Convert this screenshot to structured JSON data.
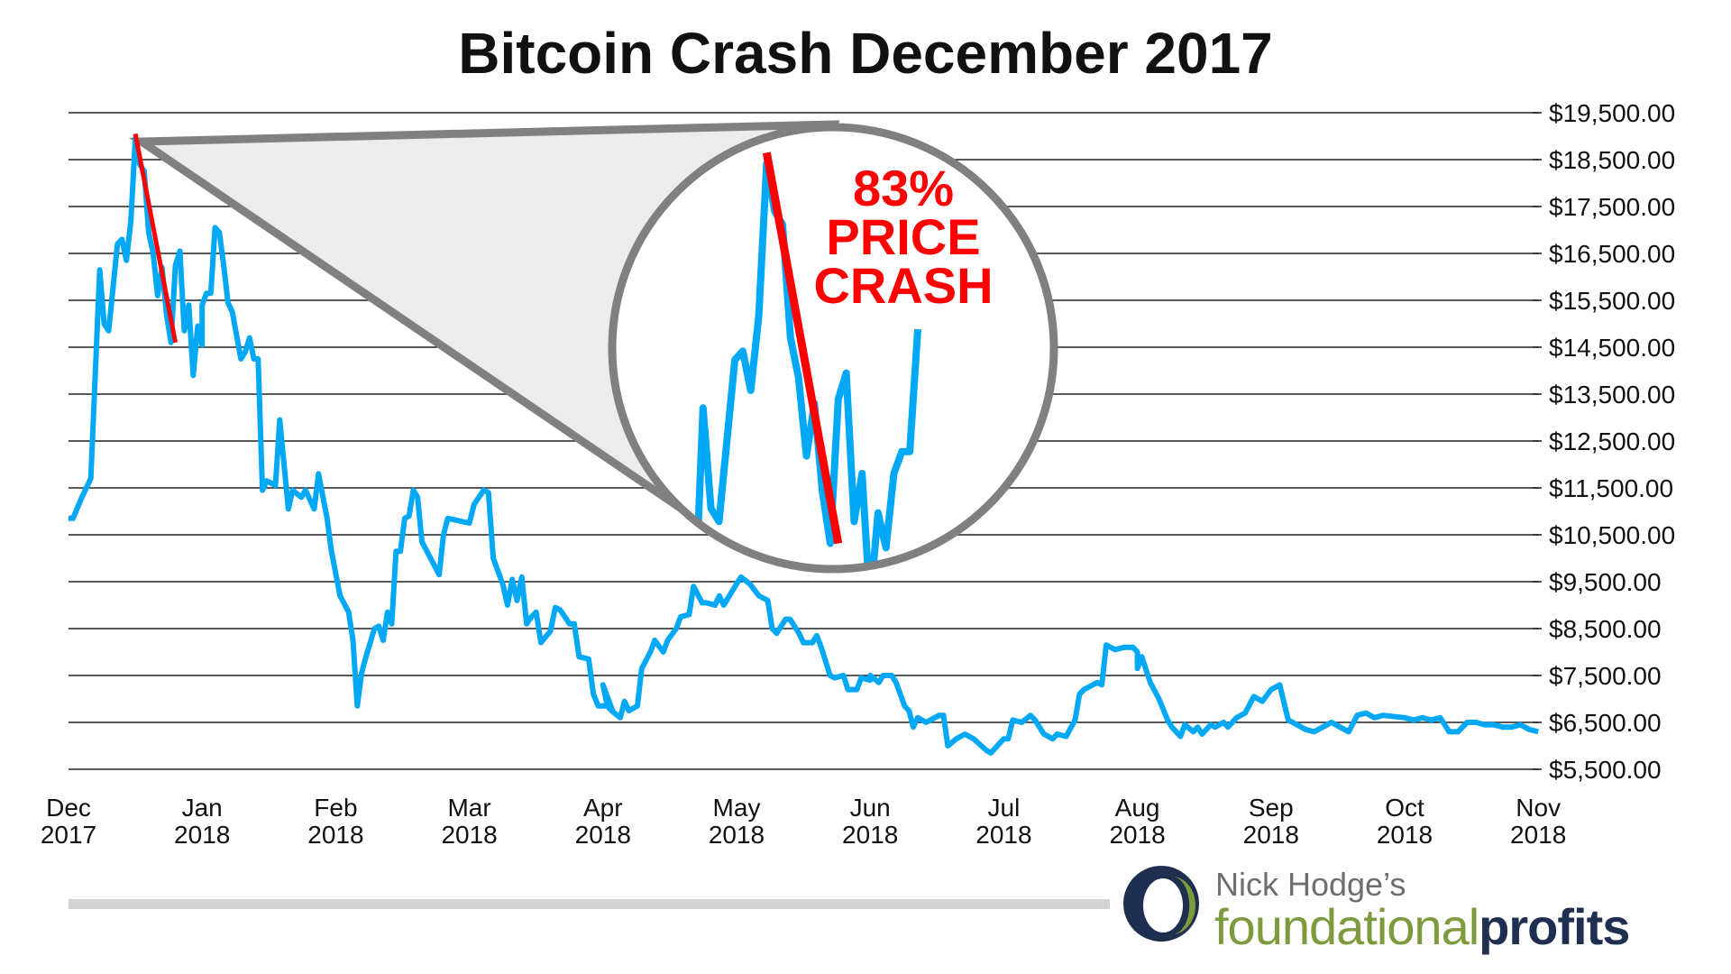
{
  "chart_data": {
    "type": "line",
    "title": "Bitcoin Crash December 2017",
    "xlabel": "",
    "ylabel": "",
    "ylim": [
      5500,
      19500
    ],
    "y_ticks": [
      "$19,500.00",
      "$18,500.00",
      "$17,500.00",
      "$16,500.00",
      "$15,500.00",
      "$14,500.00",
      "$13,500.00",
      "$12,500.00",
      "$11,500.00",
      "$10,500.00",
      "$9,500.00",
      "$8,500.00",
      "$7,500.00",
      "$6,500.00",
      "$5,500.00"
    ],
    "y_tick_values": [
      19500,
      18500,
      17500,
      16500,
      15500,
      14500,
      13500,
      12500,
      11500,
      10500,
      9500,
      8500,
      7500,
      6500,
      5500
    ],
    "y_axis_position": "right",
    "x_ticks": [
      {
        "month": "Dec",
        "year": "2017"
      },
      {
        "month": "Jan",
        "year": "2018"
      },
      {
        "month": "Feb",
        "year": "2018"
      },
      {
        "month": "Mar",
        "year": "2018"
      },
      {
        "month": "Apr",
        "year": "2018"
      },
      {
        "month": "May",
        "year": "2018"
      },
      {
        "month": "Jun",
        "year": "2018"
      },
      {
        "month": "Jul",
        "year": "2018"
      },
      {
        "month": "Aug",
        "year": "2018"
      },
      {
        "month": "Sep",
        "year": "2018"
      },
      {
        "month": "Oct",
        "year": "2018"
      },
      {
        "month": "Nov",
        "year": "2018"
      }
    ],
    "grid": true,
    "series_color": "#00a8f5",
    "crash_line_color": "#ff0000",
    "series": [
      {
        "points": [
          [
            "2017-12-01",
            10850
          ],
          [
            "2017-12-02",
            10850
          ],
          [
            "2017-12-04",
            11300
          ],
          [
            "2017-12-06",
            11700
          ],
          [
            "2017-12-08",
            16150
          ],
          [
            "2017-12-09",
            15000
          ],
          [
            "2017-12-10",
            14850
          ],
          [
            "2017-12-12",
            16700
          ],
          [
            "2017-12-13",
            16800
          ],
          [
            "2017-12-14",
            16350
          ],
          [
            "2017-12-15",
            17200
          ],
          [
            "2017-12-16",
            18950
          ],
          [
            "2017-12-17",
            18400
          ],
          [
            "2017-12-18",
            18250
          ],
          [
            "2017-12-19",
            16950
          ],
          [
            "2017-12-20",
            16500
          ],
          [
            "2017-12-21",
            15600
          ],
          [
            "2017-12-22",
            16200
          ],
          [
            "2017-12-23",
            15200
          ],
          [
            "2017-12-24",
            14600
          ],
          [
            "2017-12-25",
            16250
          ],
          [
            "2017-12-26",
            16550
          ],
          [
            "2017-12-27",
            14850
          ],
          [
            "2017-12-28",
            15400
          ],
          [
            "2017-12-29",
            13900
          ],
          [
            "2017-12-30",
            14950
          ],
          [
            "2017-12-31",
            14550
          ],
          [
            "2018-01-01",
            15400
          ],
          [
            "2018-01-02",
            15650
          ],
          [
            "2018-01-03",
            15650
          ],
          [
            "2018-01-04",
            17050
          ],
          [
            "2018-01-05",
            16950
          ],
          [
            "2018-01-06",
            16250
          ],
          [
            "2018-01-07",
            15450
          ],
          [
            "2018-01-08",
            15250
          ],
          [
            "2018-01-10",
            14250
          ],
          [
            "2018-01-11",
            14400
          ],
          [
            "2018-01-12",
            14700
          ],
          [
            "2018-01-13",
            14250
          ],
          [
            "2018-01-14",
            14250
          ],
          [
            "2018-01-15",
            11450
          ],
          [
            "2018-01-16",
            11650
          ],
          [
            "2018-01-18",
            11550
          ],
          [
            "2018-01-19",
            12950
          ],
          [
            "2018-01-21",
            11050
          ],
          [
            "2018-01-22",
            11450
          ],
          [
            "2018-01-24",
            11300
          ],
          [
            "2018-01-25",
            11450
          ],
          [
            "2018-01-27",
            11050
          ],
          [
            "2018-01-28",
            11800
          ],
          [
            "2018-01-30",
            10850
          ],
          [
            "2018-01-31",
            10150
          ],
          [
            "2018-02-02",
            9200
          ],
          [
            "2018-02-04",
            8850
          ],
          [
            "2018-02-05",
            8250
          ],
          [
            "2018-02-06",
            6850
          ],
          [
            "2018-02-07",
            7550
          ],
          [
            "2018-02-08",
            7900
          ],
          [
            "2018-02-10",
            8500
          ],
          [
            "2018-02-11",
            8550
          ],
          [
            "2018-02-12",
            8250
          ],
          [
            "2018-02-13",
            8850
          ],
          [
            "2018-02-14",
            8600
          ],
          [
            "2018-02-15",
            10150
          ],
          [
            "2018-02-16",
            10150
          ],
          [
            "2018-02-17",
            10850
          ],
          [
            "2018-02-18",
            10900
          ],
          [
            "2018-02-19",
            11450
          ],
          [
            "2018-02-20",
            11300
          ],
          [
            "2018-02-21",
            10350
          ],
          [
            "2018-02-23",
            10000
          ],
          [
            "2018-02-25",
            9650
          ],
          [
            "2018-02-26",
            10500
          ],
          [
            "2018-02-27",
            10850
          ],
          [
            "2018-03-01",
            10750
          ],
          [
            "2018-03-02",
            11150
          ],
          [
            "2018-03-04",
            11450
          ],
          [
            "2018-03-05",
            11400
          ],
          [
            "2018-03-06",
            10000
          ],
          [
            "2018-03-08",
            9450
          ],
          [
            "2018-03-09",
            9000
          ],
          [
            "2018-03-10",
            9550
          ],
          [
            "2018-03-11",
            9100
          ],
          [
            "2018-03-12",
            9600
          ],
          [
            "2018-03-13",
            8600
          ],
          [
            "2018-03-14",
            8750
          ],
          [
            "2018-03-15",
            8850
          ],
          [
            "2018-03-16",
            8200
          ],
          [
            "2018-03-18",
            8450
          ],
          [
            "2018-03-19",
            8950
          ],
          [
            "2018-03-20",
            8900
          ],
          [
            "2018-03-22",
            8600
          ],
          [
            "2018-03-23",
            8600
          ],
          [
            "2018-03-24",
            7900
          ],
          [
            "2018-03-26",
            7850
          ],
          [
            "2018-03-27",
            7100
          ],
          [
            "2018-03-28",
            6850
          ],
          [
            "2018-03-30",
            6850
          ],
          [
            "2018-03-31",
            6750
          ],
          [
            "2018-04-01",
            7300
          ],
          [
            "2018-04-02",
            6850
          ],
          [
            "2018-04-03",
            6750
          ],
          [
            "2018-04-05",
            6600
          ],
          [
            "2018-04-06",
            6950
          ],
          [
            "2018-04-07",
            6750
          ],
          [
            "2018-04-09",
            6850
          ],
          [
            "2018-04-10",
            7650
          ],
          [
            "2018-04-12",
            8000
          ],
          [
            "2018-04-13",
            8250
          ],
          [
            "2018-04-15",
            8000
          ],
          [
            "2018-04-16",
            8250
          ],
          [
            "2018-04-18",
            8500
          ],
          [
            "2018-04-19",
            8750
          ],
          [
            "2018-04-21",
            8800
          ],
          [
            "2018-04-22",
            9400
          ],
          [
            "2018-04-24",
            9050
          ],
          [
            "2018-04-25",
            9050
          ],
          [
            "2018-04-27",
            9000
          ],
          [
            "2018-04-28",
            9200
          ],
          [
            "2018-04-29",
            9000
          ],
          [
            "2018-05-01",
            9450
          ],
          [
            "2018-05-02",
            9600
          ],
          [
            "2018-05-04",
            9450
          ],
          [
            "2018-05-06",
            9200
          ],
          [
            "2018-05-08",
            9100
          ],
          [
            "2018-05-09",
            8500
          ],
          [
            "2018-05-10",
            8400
          ],
          [
            "2018-05-12",
            8700
          ],
          [
            "2018-05-13",
            8700
          ],
          [
            "2018-05-15",
            8400
          ],
          [
            "2018-05-16",
            8200
          ],
          [
            "2018-05-18",
            8200
          ],
          [
            "2018-05-19",
            8350
          ],
          [
            "2018-05-20",
            8100
          ],
          [
            "2018-05-22",
            7500
          ],
          [
            "2018-05-23",
            7450
          ],
          [
            "2018-05-25",
            7500
          ],
          [
            "2018-05-26",
            7200
          ],
          [
            "2018-05-28",
            7200
          ],
          [
            "2018-05-29",
            7450
          ],
          [
            "2018-05-31",
            7400
          ],
          [
            "2018-06-01",
            7500
          ],
          [
            "2018-06-03",
            7350
          ],
          [
            "2018-06-04",
            7500
          ],
          [
            "2018-06-06",
            7500
          ],
          [
            "2018-06-07",
            7350
          ],
          [
            "2018-06-09",
            6850
          ],
          [
            "2018-06-10",
            6750
          ],
          [
            "2018-06-11",
            6400
          ],
          [
            "2018-06-12",
            6600
          ],
          [
            "2018-06-14",
            6500
          ],
          [
            "2018-06-15",
            6550
          ],
          [
            "2018-06-17",
            6650
          ],
          [
            "2018-06-18",
            6650
          ],
          [
            "2018-06-19",
            6000
          ],
          [
            "2018-06-21",
            6150
          ],
          [
            "2018-06-23",
            6250
          ],
          [
            "2018-06-25",
            6150
          ],
          [
            "2018-06-28",
            5900
          ],
          [
            "2018-06-29",
            5850
          ],
          [
            "2018-07-01",
            6150
          ],
          [
            "2018-07-02",
            6150
          ],
          [
            "2018-07-03",
            6550
          ],
          [
            "2018-07-05",
            6500
          ],
          [
            "2018-07-07",
            6650
          ],
          [
            "2018-07-08",
            6550
          ],
          [
            "2018-07-10",
            6250
          ],
          [
            "2018-07-12",
            6150
          ],
          [
            "2018-07-13",
            6250
          ],
          [
            "2018-07-15",
            6200
          ],
          [
            "2018-07-17",
            6550
          ],
          [
            "2018-07-18",
            7100
          ],
          [
            "2018-07-19",
            7200
          ],
          [
            "2018-07-21",
            7300
          ],
          [
            "2018-07-22",
            7350
          ],
          [
            "2018-07-23",
            7300
          ],
          [
            "2018-07-24",
            8150
          ],
          [
            "2018-07-26",
            8050
          ],
          [
            "2018-07-28",
            8100
          ],
          [
            "2018-07-30",
            8100
          ],
          [
            "2018-07-31",
            8000
          ],
          [
            "2018-08-01",
            7650
          ],
          [
            "2018-08-02",
            7900
          ],
          [
            "2018-08-04",
            7350
          ],
          [
            "2018-08-06",
            7000
          ],
          [
            "2018-08-08",
            6550
          ],
          [
            "2018-08-09",
            6400
          ],
          [
            "2018-08-11",
            6200
          ],
          [
            "2018-08-12",
            6450
          ],
          [
            "2018-08-14",
            6300
          ],
          [
            "2018-08-15",
            6400
          ],
          [
            "2018-08-16",
            6250
          ],
          [
            "2018-08-18",
            6450
          ],
          [
            "2018-08-19",
            6400
          ],
          [
            "2018-08-21",
            6500
          ],
          [
            "2018-08-22",
            6400
          ],
          [
            "2018-08-24",
            6600
          ],
          [
            "2018-08-26",
            6700
          ],
          [
            "2018-08-28",
            7050
          ],
          [
            "2018-08-30",
            6950
          ],
          [
            "2018-09-01",
            7200
          ],
          [
            "2018-09-03",
            7300
          ],
          [
            "2018-09-05",
            6550
          ],
          [
            "2018-09-07",
            6450
          ],
          [
            "2018-09-09",
            6350
          ],
          [
            "2018-09-11",
            6300
          ],
          [
            "2018-09-13",
            6400
          ],
          [
            "2018-09-15",
            6500
          ],
          [
            "2018-09-17",
            6400
          ],
          [
            "2018-09-19",
            6300
          ],
          [
            "2018-09-21",
            6650
          ],
          [
            "2018-09-23",
            6700
          ],
          [
            "2018-09-25",
            6600
          ],
          [
            "2018-09-27",
            6650
          ],
          [
            "2018-10-01",
            6600
          ],
          [
            "2018-10-03",
            6550
          ],
          [
            "2018-10-05",
            6600
          ],
          [
            "2018-10-07",
            6550
          ],
          [
            "2018-10-09",
            6600
          ],
          [
            "2018-10-11",
            6300
          ],
          [
            "2018-10-13",
            6300
          ],
          [
            "2018-10-15",
            6500
          ],
          [
            "2018-10-17",
            6500
          ],
          [
            "2018-10-19",
            6450
          ],
          [
            "2018-10-21",
            6450
          ],
          [
            "2018-10-23",
            6400
          ],
          [
            "2018-10-25",
            6400
          ],
          [
            "2018-10-27",
            6450
          ],
          [
            "2018-10-29",
            6350
          ],
          [
            "2018-10-31",
            6300
          ]
        ]
      }
    ],
    "crash_line": {
      "from": [
        "2017-12-16",
        19050
      ],
      "to": [
        "2017-12-25",
        14600
      ]
    },
    "annotation": {
      "lines": [
        "83%",
        "PRICE",
        "CRASH"
      ],
      "color": "#ff0000"
    }
  },
  "logo": {
    "line1": "Nick Hodge’s",
    "line2a": "foundational",
    "line2b": "profits",
    "green": "#7d9a3c",
    "navy": "#1e2f50"
  }
}
